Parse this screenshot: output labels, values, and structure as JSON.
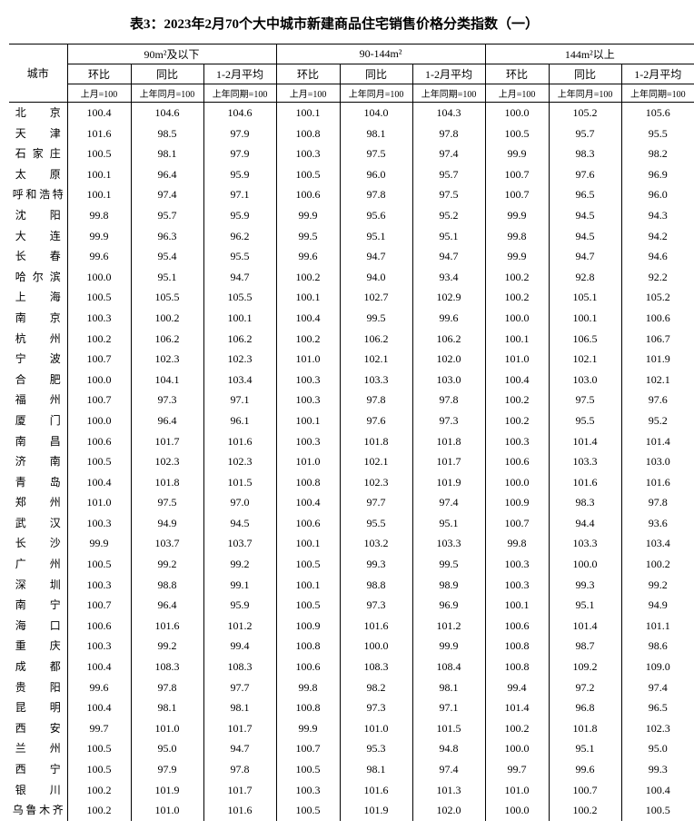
{
  "title": "表3：2023年2月70个大中城市新建商品住宅销售价格分类指数（一）",
  "header": {
    "city": "城市",
    "groups": [
      "90m²及以下",
      "90-144m²",
      "144m²以上"
    ],
    "cols": [
      "环比",
      "同比",
      "1-2月平均"
    ],
    "subs": [
      "上月=100",
      "上年同月=100",
      "上年同期=100"
    ]
  },
  "rows": [
    {
      "city": "北　京",
      "v": [
        "100.4",
        "104.6",
        "104.6",
        "100.1",
        "104.0",
        "104.3",
        "100.0",
        "105.2",
        "105.6"
      ]
    },
    {
      "city": "天　津",
      "v": [
        "101.6",
        "98.5",
        "97.9",
        "100.8",
        "98.1",
        "97.8",
        "100.5",
        "95.7",
        "95.5"
      ]
    },
    {
      "city": "石家庄",
      "v": [
        "100.5",
        "98.1",
        "97.9",
        "100.3",
        "97.5",
        "97.4",
        "99.9",
        "98.3",
        "98.2"
      ]
    },
    {
      "city": "太　原",
      "v": [
        "100.1",
        "96.4",
        "95.9",
        "100.5",
        "96.0",
        "95.7",
        "100.7",
        "97.6",
        "96.9"
      ]
    },
    {
      "city": "呼和浩特",
      "v": [
        "100.1",
        "97.4",
        "97.1",
        "100.6",
        "97.8",
        "97.5",
        "100.7",
        "96.5",
        "96.0"
      ]
    },
    {
      "city": "沈　阳",
      "v": [
        "99.8",
        "95.7",
        "95.9",
        "99.9",
        "95.6",
        "95.2",
        "99.9",
        "94.5",
        "94.3"
      ]
    },
    {
      "city": "大　连",
      "v": [
        "99.9",
        "96.3",
        "96.2",
        "99.5",
        "95.1",
        "95.1",
        "99.8",
        "94.5",
        "94.2"
      ]
    },
    {
      "city": "长　春",
      "v": [
        "99.6",
        "95.4",
        "95.5",
        "99.6",
        "94.7",
        "94.7",
        "99.9",
        "94.7",
        "94.6"
      ]
    },
    {
      "city": "哈尔滨",
      "v": [
        "100.0",
        "95.1",
        "94.7",
        "100.2",
        "94.0",
        "93.4",
        "100.2",
        "92.8",
        "92.2"
      ]
    },
    {
      "city": "上　海",
      "v": [
        "100.5",
        "105.5",
        "105.5",
        "100.1",
        "102.7",
        "102.9",
        "100.2",
        "105.1",
        "105.2"
      ]
    },
    {
      "city": "南　京",
      "v": [
        "100.3",
        "100.2",
        "100.1",
        "100.4",
        "99.5",
        "99.6",
        "100.0",
        "100.1",
        "100.6"
      ]
    },
    {
      "city": "杭　州",
      "v": [
        "100.2",
        "106.2",
        "106.2",
        "100.2",
        "106.2",
        "106.2",
        "100.1",
        "106.5",
        "106.7"
      ]
    },
    {
      "city": "宁　波",
      "v": [
        "100.7",
        "102.3",
        "102.3",
        "101.0",
        "102.1",
        "102.0",
        "101.0",
        "102.1",
        "101.9"
      ]
    },
    {
      "city": "合　肥",
      "v": [
        "100.0",
        "104.1",
        "103.4",
        "100.3",
        "103.3",
        "103.0",
        "100.4",
        "103.0",
        "102.1"
      ]
    },
    {
      "city": "福　州",
      "v": [
        "100.7",
        "97.3",
        "97.1",
        "100.3",
        "97.8",
        "97.8",
        "100.2",
        "97.5",
        "97.6"
      ]
    },
    {
      "city": "厦　门",
      "v": [
        "100.0",
        "96.4",
        "96.1",
        "100.1",
        "97.6",
        "97.3",
        "100.2",
        "95.5",
        "95.2"
      ]
    },
    {
      "city": "南　昌",
      "v": [
        "100.6",
        "101.7",
        "101.6",
        "100.3",
        "101.8",
        "101.8",
        "100.3",
        "101.4",
        "101.4"
      ]
    },
    {
      "city": "济　南",
      "v": [
        "100.5",
        "102.3",
        "102.3",
        "101.0",
        "102.1",
        "101.7",
        "100.6",
        "103.3",
        "103.0"
      ]
    },
    {
      "city": "青　岛",
      "v": [
        "100.4",
        "101.8",
        "101.5",
        "100.8",
        "102.3",
        "101.9",
        "100.0",
        "101.6",
        "101.6"
      ]
    },
    {
      "city": "郑　州",
      "v": [
        "101.0",
        "97.5",
        "97.0",
        "100.4",
        "97.7",
        "97.4",
        "100.9",
        "98.3",
        "97.8"
      ]
    },
    {
      "city": "武　汉",
      "v": [
        "100.3",
        "94.9",
        "94.5",
        "100.6",
        "95.5",
        "95.1",
        "100.7",
        "94.4",
        "93.6"
      ]
    },
    {
      "city": "长　沙",
      "v": [
        "99.9",
        "103.7",
        "103.7",
        "100.1",
        "103.2",
        "103.3",
        "99.8",
        "103.3",
        "103.4"
      ]
    },
    {
      "city": "广　州",
      "v": [
        "100.5",
        "99.2",
        "99.2",
        "100.5",
        "99.3",
        "99.5",
        "100.3",
        "100.0",
        "100.2"
      ]
    },
    {
      "city": "深　圳",
      "v": [
        "100.3",
        "98.8",
        "99.1",
        "100.1",
        "98.8",
        "98.9",
        "100.3",
        "99.3",
        "99.2"
      ]
    },
    {
      "city": "南　宁",
      "v": [
        "100.7",
        "96.4",
        "95.9",
        "100.5",
        "97.3",
        "96.9",
        "100.1",
        "95.1",
        "94.9"
      ]
    },
    {
      "city": "海　口",
      "v": [
        "100.6",
        "101.6",
        "101.2",
        "100.9",
        "101.6",
        "101.2",
        "100.6",
        "101.4",
        "101.1"
      ]
    },
    {
      "city": "重　庆",
      "v": [
        "100.3",
        "99.2",
        "99.4",
        "100.8",
        "100.0",
        "99.9",
        "100.8",
        "98.7",
        "98.6"
      ]
    },
    {
      "city": "成　都",
      "v": [
        "100.4",
        "108.3",
        "108.3",
        "100.6",
        "108.3",
        "108.4",
        "100.8",
        "109.2",
        "109.0"
      ]
    },
    {
      "city": "贵　阳",
      "v": [
        "99.6",
        "97.8",
        "97.7",
        "99.8",
        "98.2",
        "98.1",
        "99.4",
        "97.2",
        "97.4"
      ]
    },
    {
      "city": "昆　明",
      "v": [
        "100.4",
        "98.1",
        "98.1",
        "100.8",
        "97.3",
        "97.1",
        "101.4",
        "96.8",
        "96.5"
      ]
    },
    {
      "city": "西　安",
      "v": [
        "99.7",
        "101.0",
        "101.7",
        "99.9",
        "101.0",
        "101.5",
        "100.2",
        "101.8",
        "102.3"
      ]
    },
    {
      "city": "兰　州",
      "v": [
        "100.5",
        "95.0",
        "94.7",
        "100.7",
        "95.3",
        "94.8",
        "100.0",
        "95.1",
        "95.0"
      ]
    },
    {
      "city": "西　宁",
      "v": [
        "100.5",
        "97.9",
        "97.8",
        "100.5",
        "98.1",
        "97.4",
        "99.7",
        "99.6",
        "99.3"
      ]
    },
    {
      "city": "银　川",
      "v": [
        "100.2",
        "101.9",
        "101.7",
        "100.3",
        "101.6",
        "101.3",
        "101.0",
        "100.7",
        "100.4"
      ]
    },
    {
      "city": "乌鲁木齐",
      "v": [
        "100.2",
        "101.0",
        "101.6",
        "100.5",
        "101.9",
        "102.0",
        "100.0",
        "100.2",
        "100.5"
      ]
    }
  ]
}
